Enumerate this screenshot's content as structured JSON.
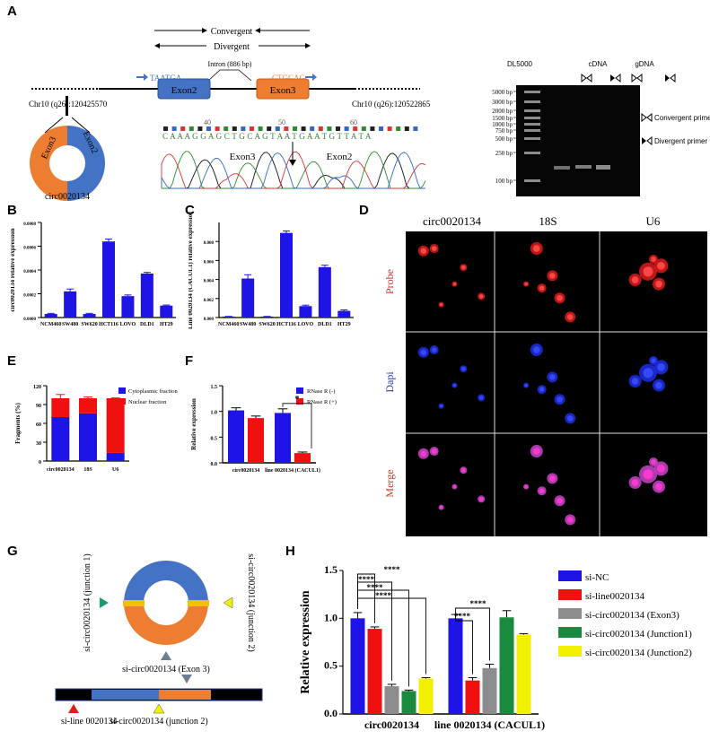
{
  "panels": {
    "A": "A",
    "B": "B",
    "C": "C",
    "D": "D",
    "E": "E",
    "F": "F",
    "G": "G",
    "H": "H"
  },
  "panelA": {
    "convergent": "Convergent",
    "divergent": "Divergent",
    "intron": "Intron (886 bp)",
    "left_seq": "TAATGA",
    "right_seq": "CTGCAG",
    "exon2": "Exon2",
    "exon3": "Exon3",
    "chr_left": "Chr10 (q26):120425570",
    "chr_right": "Chr10 (q26):120522865",
    "circ_name": "circ0020134",
    "seq_ticks": [
      "40",
      "50",
      "60"
    ],
    "sequence": "C A A A G G A G C T G C A G T A A T G A A T G T T A T A",
    "chrom_exon3": "Exon3",
    "chrom_exon2": "Exon2",
    "gel": {
      "marker": "DL5000",
      "cdna": "cDNA",
      "gdna": "gDNA",
      "sizes": [
        "5000 bp",
        "3000 bp",
        "2000 bp",
        "1500 bp",
        "1000 bp",
        "750 bp",
        "500 bp",
        "250 bp",
        "100 bp"
      ],
      "convergent_primer": "Convergent primer",
      "divergent_primer": "Divergent primer"
    }
  },
  "panelD": {
    "cols": [
      "circ0020134",
      "18S",
      "U6"
    ],
    "rows": [
      "Probe",
      "Dapi",
      "Merge"
    ],
    "row_colors": [
      "#c0392b",
      "#2b3a9f",
      "#c0392b"
    ]
  },
  "chart_data": [
    {
      "id": "B",
      "type": "bar",
      "ylabel": "circ0020134 relative expression",
      "categories": [
        "NCM460",
        "SW480",
        "SW620",
        "HCT116",
        "LOVO",
        "DLD1",
        "HT29"
      ],
      "values": [
        3e-05,
        0.00022,
        3e-05,
        0.00064,
        0.00018,
        0.00037,
        0.0001
      ],
      "errors": [
        5e-06,
        2e-05,
        5e-06,
        2e-05,
        1e-05,
        1e-05,
        5e-06
      ],
      "ylim": [
        0,
        0.0008
      ],
      "yticks": [
        "0.0000",
        "0.0002",
        "0.0004",
        "0.0006",
        "0.0008"
      ],
      "color": "#1f14e6"
    },
    {
      "id": "C",
      "type": "bar",
      "ylabel": "Line 0020134 (CACUL1) relative expression",
      "categories": [
        "NCM460",
        "SW480",
        "SW620",
        "HCT116",
        "LOVO",
        "DLD1",
        "HT29"
      ],
      "values": [
        0.0001,
        0.0041,
        0.0001,
        0.0089,
        0.0012,
        0.0053,
        0.0007
      ],
      "errors": [
        2e-05,
        0.0004,
        2e-05,
        0.0002,
        0.0001,
        0.0002,
        0.0001
      ],
      "ylim": [
        0,
        0.01
      ],
      "yticks": [
        "0.000",
        "0.002",
        "0.004",
        "0.006",
        "0.008"
      ],
      "color": "#1f14e6"
    },
    {
      "id": "E",
      "type": "bar-stacked",
      "ylabel": "Fragments (%)",
      "categories": [
        "circ0020134",
        "18S",
        "U6"
      ],
      "series": [
        {
          "name": "Cytoplasmic fraction",
          "values": [
            70,
            76,
            13
          ],
          "color": "#1f14e6"
        },
        {
          "name": "Nuclear fraction",
          "values": [
            30,
            24,
            87
          ],
          "color": "#f01010"
        }
      ],
      "top_errors": [
        6,
        2,
        0.5
      ],
      "ylim": [
        0,
        120
      ],
      "yticks": [
        "0",
        "30",
        "60",
        "90",
        "120"
      ]
    },
    {
      "id": "F",
      "type": "bar",
      "ylabel": "Relative expression",
      "categories": [
        "circ0020134",
        "line 0020134 (CACUL1)"
      ],
      "series": [
        {
          "name": "RNase R (-)",
          "values": [
            1.02,
            0.97
          ],
          "errors": [
            0.05,
            0.08
          ],
          "color": "#1f14e6"
        },
        {
          "name": "RNase R (+)",
          "values": [
            0.87,
            0.19
          ],
          "errors": [
            0.04,
            0.02
          ],
          "color": "#f01010"
        }
      ],
      "ylim": [
        0,
        1.5
      ],
      "yticks": [
        "0.0",
        "0.5",
        "1.0",
        "1.5"
      ],
      "significance": "*"
    },
    {
      "id": "H",
      "type": "bar",
      "ylabel": "Relative expression",
      "categories": [
        "circ0020134",
        "line 0020134 (CACUL1)"
      ],
      "series": [
        {
          "name": "si-NC",
          "values": [
            1.0,
            1.0
          ],
          "errors": [
            0.06,
            0.04
          ],
          "color": "#1f14e6"
        },
        {
          "name": "si-line0020134",
          "values": [
            0.89,
            0.35
          ],
          "errors": [
            0.02,
            0.03
          ],
          "color": "#f01010"
        },
        {
          "name": "si-circ0020134 (Exon3)",
          "values": [
            0.29,
            0.48
          ],
          "errors": [
            0.02,
            0.04
          ],
          "color": "#8c8c8c"
        },
        {
          "name": "si-circ0020134 (Junction1)",
          "values": [
            0.24,
            1.01
          ],
          "errors": [
            0.01,
            0.07
          ],
          "color": "#1a8a3f"
        },
        {
          "name": "si-circ0020134 (Junction2)",
          "values": [
            0.37,
            0.83
          ],
          "errors": [
            0.01,
            0.01
          ],
          "color": "#f0f000"
        }
      ],
      "ylim": [
        0,
        1.5
      ],
      "yticks": [
        "0.0",
        "0.5",
        "1.0",
        "1.5"
      ],
      "significance": "****"
    }
  ],
  "panelG": {
    "junction1": "si-circ0020134 (junction 1)",
    "junction2": "si-circ0020134 (junction 2)",
    "exon3": "si-circ0020134 (Exon 3)",
    "si_line": "si-line 0020134",
    "si_junction2": "si-circ0020134 (junction 2)"
  }
}
